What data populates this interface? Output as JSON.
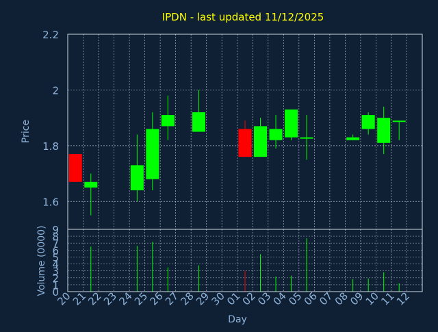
{
  "chart_data": {
    "type": "candlestick",
    "title": "IPDN - last updated 11/12/2025",
    "xlabel": "Day",
    "price_panel": {
      "ylabel": "Price",
      "ylim": [
        1.5,
        2.2
      ],
      "yticks": [
        "1.6",
        "1.8",
        "2",
        "2.2"
      ],
      "ytick_values": [
        1.6,
        1.8,
        2.0,
        2.2
      ],
      "grid": true
    },
    "volume_panel": {
      "ylabel": "Volume (0000)",
      "ylim": [
        0,
        9
      ],
      "yticks": [
        "0",
        "1",
        "2",
        "3",
        "4",
        "5",
        "6",
        "7",
        "8",
        "9"
      ],
      "grid": true
    },
    "x_ticks": [
      "20",
      "21",
      "22",
      "23",
      "24",
      "25",
      "26",
      "27",
      "28",
      "29",
      "30",
      "01",
      "02",
      "03",
      "04",
      "05",
      "06",
      "07",
      "08",
      "09",
      "10",
      "11",
      "12"
    ],
    "candles": [
      {
        "day": "20",
        "open": 1.77,
        "high": 1.77,
        "low": 1.67,
        "close": 1.67,
        "volume": 0
      },
      {
        "day": "21",
        "open": 1.65,
        "high": 1.7,
        "low": 1.55,
        "close": 1.67,
        "volume": 6.5
      },
      {
        "day": "24",
        "open": 1.64,
        "high": 1.84,
        "low": 1.6,
        "close": 1.73,
        "volume": 6.6
      },
      {
        "day": "25",
        "open": 1.68,
        "high": 1.92,
        "low": 1.64,
        "close": 1.86,
        "volume": 7.2
      },
      {
        "day": "26",
        "open": 1.87,
        "high": 1.98,
        "low": 1.82,
        "close": 1.91,
        "volume": 3.5
      },
      {
        "day": "28",
        "open": 1.85,
        "high": 2.0,
        "low": 1.85,
        "close": 1.92,
        "volume": 3.8
      },
      {
        "day": "01",
        "open": 1.86,
        "high": 1.89,
        "low": 1.76,
        "close": 1.76,
        "volume": 3.0
      },
      {
        "day": "02",
        "open": 1.76,
        "high": 1.9,
        "low": 1.76,
        "close": 1.87,
        "volume": 5.4
      },
      {
        "day": "03",
        "open": 1.82,
        "high": 1.91,
        "low": 1.79,
        "close": 1.86,
        "volume": 2.2
      },
      {
        "day": "04",
        "open": 1.83,
        "high": 1.93,
        "low": 1.82,
        "close": 1.93,
        "volume": 2.3
      },
      {
        "day": "05",
        "open": 1.83,
        "high": 1.91,
        "low": 1.75,
        "close": 1.83,
        "volume": 7.7
      },
      {
        "day": "08",
        "open": 1.82,
        "high": 1.84,
        "low": 1.82,
        "close": 1.83,
        "volume": 1.8
      },
      {
        "day": "09",
        "open": 1.86,
        "high": 1.92,
        "low": 1.84,
        "close": 1.91,
        "volume": 1.9
      },
      {
        "day": "10",
        "open": 1.81,
        "high": 1.94,
        "low": 1.77,
        "close": 1.9,
        "volume": 2.8
      },
      {
        "day": "11",
        "open": 1.89,
        "high": 1.89,
        "low": 1.82,
        "close": 1.89,
        "volume": 1.2
      }
    ],
    "colors": {
      "background": "#0f2035",
      "up": "#00ff00",
      "down": "#ff0000",
      "title": "#ffff00",
      "axis_text": "#8fb3d9",
      "grid": "#cfd8e3",
      "frame": "#cfd8e3"
    }
  }
}
